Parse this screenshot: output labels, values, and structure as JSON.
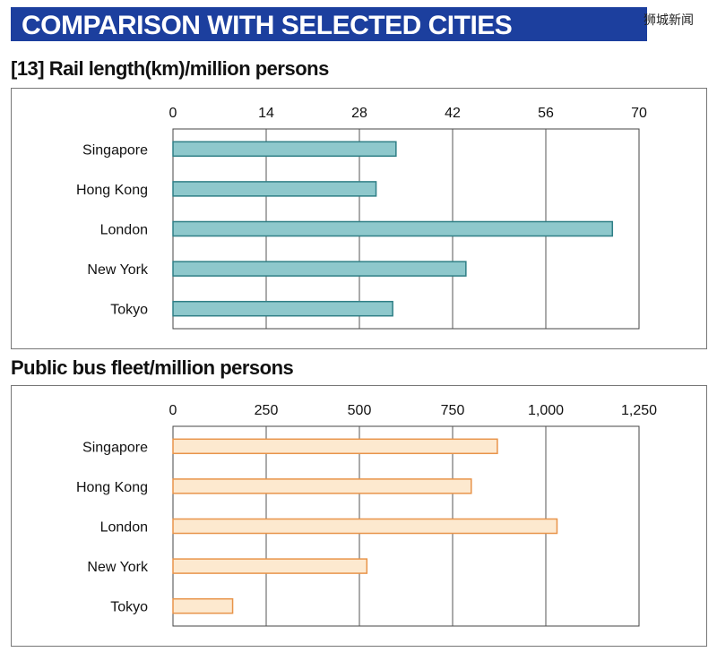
{
  "banner": {
    "title": "COMPARISON WITH SELECTED CITIES"
  },
  "watermark": "狮城新闻",
  "colors": {
    "banner": "#1c3f9e",
    "rail_bar": "#8ec8cc",
    "rail_bar_edge": "#2f7f86",
    "bus_bar": "#fde9cf",
    "bus_bar_edge": "#e8944a"
  },
  "chart_data": [
    {
      "type": "bar",
      "orientation": "horizontal",
      "title": "[13]  Rail length(km)/million persons",
      "categories": [
        "Singapore",
        "Hong Kong",
        "London",
        "New York",
        "Tokyo"
      ],
      "values": [
        33.5,
        30.5,
        66,
        44,
        33
      ],
      "xlim": [
        0,
        70
      ],
      "tick_labels": [
        "0",
        "14",
        "28",
        "42",
        "56",
        "70"
      ],
      "grid": true,
      "color": "#8ec8cc"
    },
    {
      "type": "bar",
      "orientation": "horizontal",
      "title": "Public bus fleet/million persons",
      "categories": [
        "Singapore",
        "Hong Kong",
        "London",
        "New York",
        "Tokyo"
      ],
      "values": [
        870,
        800,
        1030,
        520,
        160
      ],
      "xlim": [
        0,
        1250
      ],
      "tick_labels": [
        "0",
        "250",
        "500",
        "750",
        "1,000",
        "1,250"
      ],
      "grid": true,
      "color": "#fde9cf"
    }
  ]
}
